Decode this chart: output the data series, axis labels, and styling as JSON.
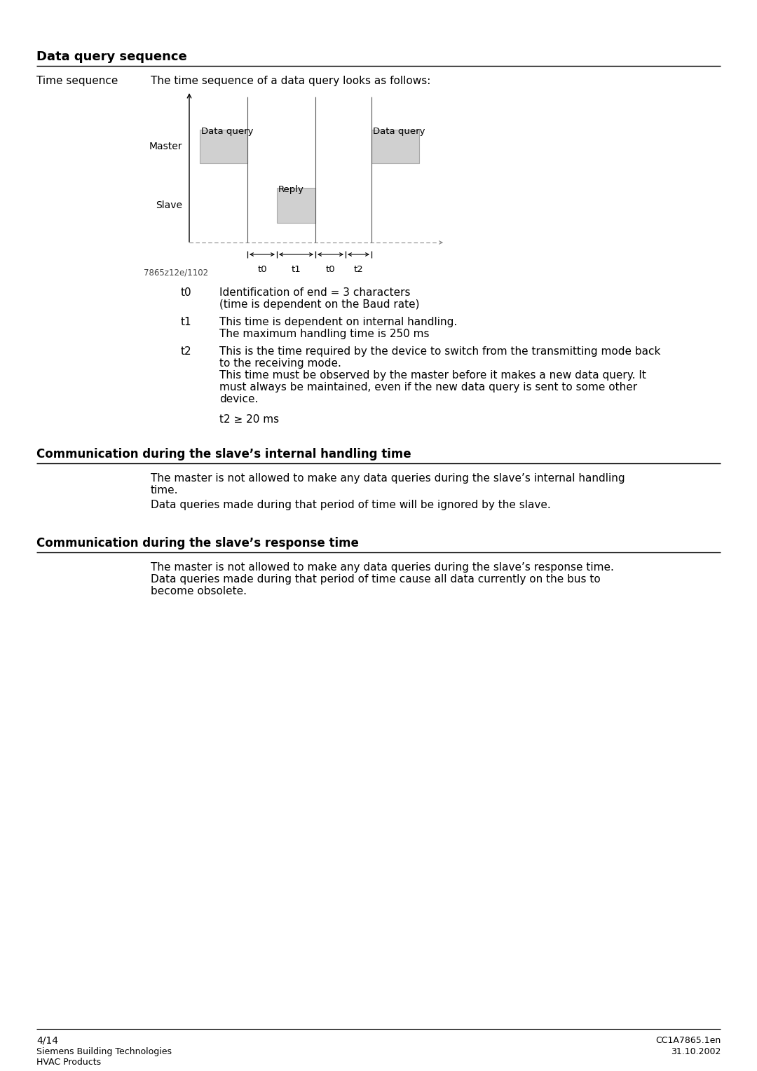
{
  "page_title": "Data query sequence",
  "section1_label": "Time sequence",
  "section1_text": "The time sequence of a data query looks as follows:",
  "diagram_label_master": "Master",
  "diagram_label_slave": "Slave",
  "diagram_label_data_query1": "Data query",
  "diagram_label_data_query2": "Data query",
  "diagram_label_reply": "Reply",
  "diagram_watermark": "7865z12e/1102",
  "t0_label": "t0",
  "t1_label": "t1",
  "t2_label": "t2",
  "t0_desc_line1": "Identification of end = 3 characters",
  "t0_desc_line2": "(time is dependent on the Baud rate)",
  "t1_desc_line1": "This time is dependent on internal handling.",
  "t1_desc_line2": "The maximum handling time is 250 ms",
  "t2_desc_line1": "This is the time required by the device to switch from the transmitting mode back",
  "t2_desc_line2": "to the receiving mode.",
  "t2_desc_line3": "This time must be observed by the master before it makes a new data query. It",
  "t2_desc_line4": "must always be maintained, even if the new data query is sent to some other",
  "t2_desc_line5": "device.",
  "t2_formula": "t2 ≥ 20 ms",
  "section2_title": "Communication during the slave’s internal handling time",
  "section2_text1": "The master is not allowed to make any data queries during the slave’s internal handling",
  "section2_text2": "time.",
  "section2_text3": "Data queries made during that period of time will be ignored by the slave.",
  "section3_title": "Communication during the slave’s response time",
  "section3_text1": "The master is not allowed to make any data queries during the slave’s response time.",
  "section3_text2": "Data queries made during that period of time cause all data currently on the bus to",
  "section3_text3": "become obsolete.",
  "footer_left1": "4/14",
  "footer_left2": "Siemens Building Technologies",
  "footer_left3": "HVAC Products",
  "footer_right1": "CC1A7865.1en",
  "footer_right2": "31.10.2002",
  "bg_color": "#ffffff",
  "text_color": "#000000",
  "bar_color": "#d0d0d0",
  "bar_edge_color": "#aaaaaa",
  "line_color": "#000000",
  "dashed_line_color": "#888888"
}
